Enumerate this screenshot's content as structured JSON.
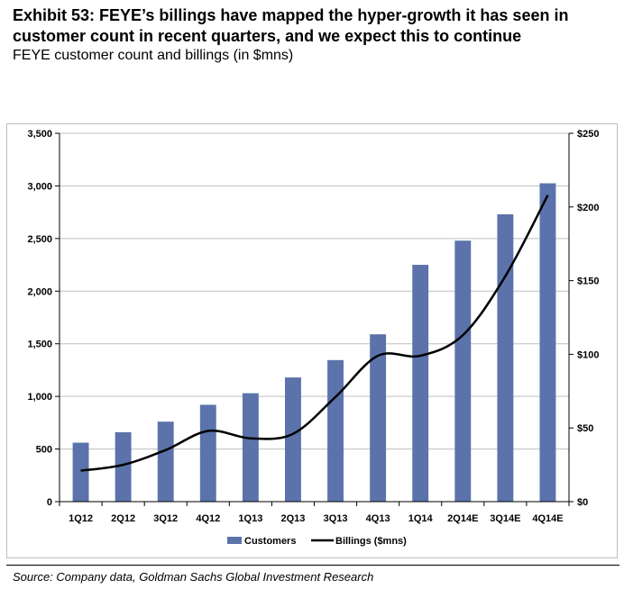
{
  "header": {
    "title": "Exhibit 53: FEYE’s billings have mapped the hyper-growth it has seen in customer count in recent quarters, and we expect this to continue",
    "subtitle": "FEYE customer count and billings (in $mns)"
  },
  "footer": {
    "source": "Source: Company data, Goldman Sachs Global Investment Research"
  },
  "chart_data": {
    "type": "bar",
    "categories": [
      "1Q12",
      "2Q12",
      "3Q12",
      "4Q12",
      "1Q13",
      "2Q13",
      "3Q13",
      "4Q13",
      "1Q14",
      "2Q14E",
      "3Q14E",
      "4Q14E"
    ],
    "series": [
      {
        "name": "Customers",
        "type": "bar",
        "axis": "left",
        "color": "#5b73aa",
        "values": [
          560,
          660,
          760,
          920,
          1030,
          1180,
          1345,
          1590,
          2250,
          2480,
          2730,
          3025
        ]
      },
      {
        "name": "Billings ($mns)",
        "type": "line",
        "axis": "right",
        "color": "#000000",
        "values": [
          21,
          25,
          35,
          48,
          43,
          46,
          71,
          99,
          99,
          113,
          153,
          208
        ]
      }
    ],
    "left_axis": {
      "min": 0,
      "max": 3500,
      "step": 500,
      "tick_labels": [
        "0",
        "500",
        "1,000",
        "1,500",
        "2,000",
        "2,500",
        "3,000",
        "3,500"
      ]
    },
    "right_axis": {
      "min": 0,
      "max": 250,
      "step": 50,
      "tick_labels": [
        "$0",
        "$50",
        "$100",
        "$150",
        "$200",
        "$250"
      ]
    },
    "grid": true,
    "legend": "bottom"
  }
}
